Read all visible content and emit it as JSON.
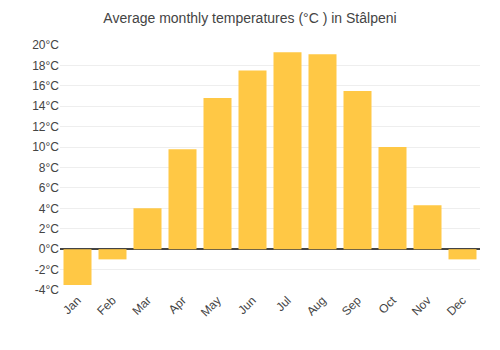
{
  "chart_data": {
    "type": "bar",
    "title": "Average monthly temperatures (°C ) in Stâlpeni",
    "categories": [
      "Jan",
      "Feb",
      "Mar",
      "Apr",
      "May",
      "Jun",
      "Jul",
      "Aug",
      "Sep",
      "Oct",
      "Nov",
      "Dec"
    ],
    "values": [
      -3.5,
      -1.0,
      4.0,
      9.8,
      14.8,
      17.5,
      19.3,
      19.1,
      15.5,
      10.0,
      4.3,
      -1.0
    ],
    "color": "#FFC845",
    "ylim": [
      -4,
      20
    ],
    "yticks": [
      {
        "value": -4,
        "label": "-4°C"
      },
      {
        "value": -2,
        "label": "-2°C"
      },
      {
        "value": 0,
        "label": "0°C"
      },
      {
        "value": 2,
        "label": "2°C"
      },
      {
        "value": 4,
        "label": "4°C"
      },
      {
        "value": 6,
        "label": "6°C"
      },
      {
        "value": 8,
        "label": "8°C"
      },
      {
        "value": 10,
        "label": "10°C"
      },
      {
        "value": 12,
        "label": "12°C"
      },
      {
        "value": 14,
        "label": "14°C"
      },
      {
        "value": 16,
        "label": "16°C"
      },
      {
        "value": 18,
        "label": "18°C"
      },
      {
        "value": 20,
        "label": "20°C"
      }
    ],
    "grid": true
  }
}
